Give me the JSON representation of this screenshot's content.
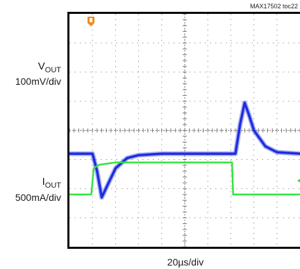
{
  "chart_data": {
    "type": "line",
    "figure_id": "MAX17502 toc22",
    "x_scale": "20µs/div",
    "x_divisions": 10,
    "y_divisions": 8,
    "grid": true,
    "series": [
      {
        "name": "VOUT",
        "label_main": "V",
        "label_sub": "OUT",
        "scale": "100mV/div",
        "color": "#1f2de0",
        "x": [
          0,
          0.5,
          1.0,
          1.2,
          1.4,
          1.7,
          2.0,
          2.5,
          3.0,
          4.0,
          5.0,
          6.0,
          7.2,
          7.4,
          7.6,
          7.8,
          8.0,
          8.5,
          9.0,
          10.0
        ],
        "y": [
          -0.8,
          -0.8,
          -0.8,
          -1.4,
          -2.3,
          -1.8,
          -1.3,
          -0.95,
          -0.85,
          -0.8,
          -0.8,
          -0.8,
          -0.8,
          0.2,
          0.95,
          0.5,
          0.0,
          -0.55,
          -0.75,
          -0.8
        ]
      },
      {
        "name": "IOUT",
        "label_main": "I",
        "label_sub": "OUT",
        "scale": "500mA/div",
        "color": "#2ee33a",
        "x": [
          0,
          0.95,
          1.05,
          1.2,
          1.3,
          2.0,
          7.05,
          7.1,
          7.2,
          10.0
        ],
        "y": [
          -2.2,
          -2.2,
          -1.3,
          -1.22,
          -1.18,
          -1.1,
          -1.1,
          -2.2,
          -2.2,
          -2.2
        ]
      }
    ]
  }
}
